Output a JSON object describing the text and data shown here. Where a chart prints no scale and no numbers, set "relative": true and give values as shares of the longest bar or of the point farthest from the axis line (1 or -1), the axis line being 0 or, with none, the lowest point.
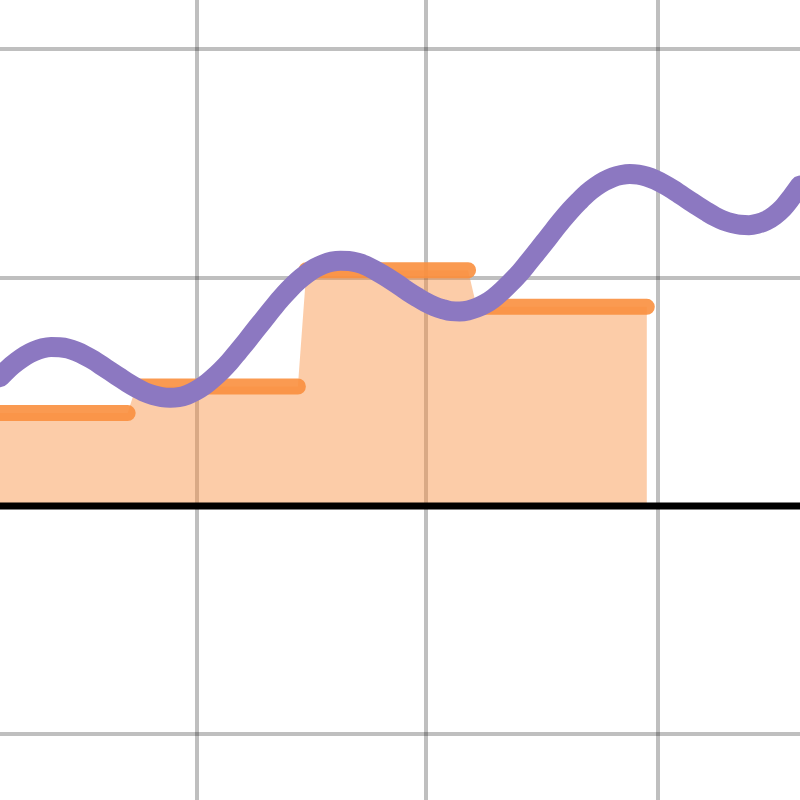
{
  "chart_data": {
    "type": "line",
    "relative": true,
    "grid": true,
    "categories": [
      null,
      null,
      null,
      null,
      null,
      null,
      null,
      null,
      null,
      null,
      null,
      null,
      null,
      null,
      null,
      null,
      null,
      null,
      null,
      null,
      null,
      null,
      null,
      null,
      null,
      null,
      null,
      null,
      null,
      null,
      null,
      null,
      null,
      null,
      null,
      null,
      null,
      null,
      null,
      null,
      null,
      null,
      null,
      null,
      null,
      null,
      null,
      null,
      null,
      null,
      null,
      null,
      null,
      null,
      null,
      null,
      null,
      null,
      null,
      null,
      null,
      null,
      null,
      null,
      null,
      null,
      null,
      null,
      null,
      null,
      null,
      null,
      null,
      null,
      null,
      null,
      null,
      null,
      null,
      null,
      null,
      null,
      null,
      null,
      null,
      null,
      null,
      null,
      null,
      null,
      null,
      null,
      null,
      null,
      null
    ],
    "series": [
      {
        "color": "#8c78c1",
        "values": [
          0.388,
          0.414,
          0.435,
          0.453,
          0.466,
          0.475,
          0.479,
          0.478,
          0.474,
          0.465,
          0.453,
          0.439,
          0.422,
          0.405,
          0.388,
          0.371,
          0.356,
          0.343,
          0.334,
          0.328,
          0.326,
          0.328,
          0.335,
          0.347,
          0.363,
          0.384,
          0.408,
          0.435,
          0.466,
          0.497,
          0.53,
          0.562,
          0.594,
          0.625,
          0.653,
          0.678,
          0.699,
          0.716,
          0.728,
          0.736,
          0.739,
          0.738,
          0.733,
          0.724,
          0.711,
          0.696,
          0.68,
          0.663,
          0.645,
          0.629,
          0.614,
          0.602,
          0.593,
          0.587,
          0.586,
          0.589,
          0.597,
          0.609,
          0.626,
          0.648,
          0.673,
          0.7,
          0.731,
          0.763,
          0.795,
          0.828,
          0.86,
          0.89,
          0.917,
          0.942,
          0.962,
          0.978,
          0.99,
          0.997,
          1,
          0.998,
          0.992,
          0.982,
          0.969,
          0.954,
          0.937,
          0.92,
          0.903,
          0.887,
          0.872,
          0.86,
          0.852,
          0.847,
          0.846,
          0.85,
          0.859,
          0.875,
          0.898,
          0.93,
          0.965
        ]
      },
      {
        "type": "area",
        "color": "#f98f3e",
        "values": [
          0.28,
          0.28,
          0.28,
          0.28,
          0.28,
          0.28,
          0.28,
          0.28,
          0.28,
          0.28,
          0.28,
          0.28,
          0.28,
          0.28,
          0.28,
          0.28,
          0.36,
          0.36,
          0.36,
          0.36,
          0.36,
          0.36,
          0.36,
          0.36,
          0.36,
          0.36,
          0.36,
          0.36,
          0.36,
          0.36,
          0.36,
          0.36,
          0.36,
          0.36,
          0.36,
          0.36,
          0.71,
          0.71,
          0.71,
          0.71,
          0.71,
          0.71,
          0.71,
          0.71,
          0.71,
          0.71,
          0.71,
          0.71,
          0.71,
          0.71,
          0.71,
          0.71,
          0.71,
          0.71,
          0.71,
          0.71,
          0.6,
          0.6,
          0.6,
          0.6,
          0.6,
          0.6,
          0.6,
          0.6,
          0.6,
          0.6,
          0.6,
          0.6,
          0.6,
          0.6,
          0.6,
          0.6,
          0.6,
          0.6,
          0.6,
          0.6,
          0.6,
          null,
          null,
          null,
          null,
          null,
          null,
          null,
          null,
          null,
          null,
          null,
          null,
          null,
          null,
          null,
          null,
          null,
          null
        ]
      }
    ]
  }
}
